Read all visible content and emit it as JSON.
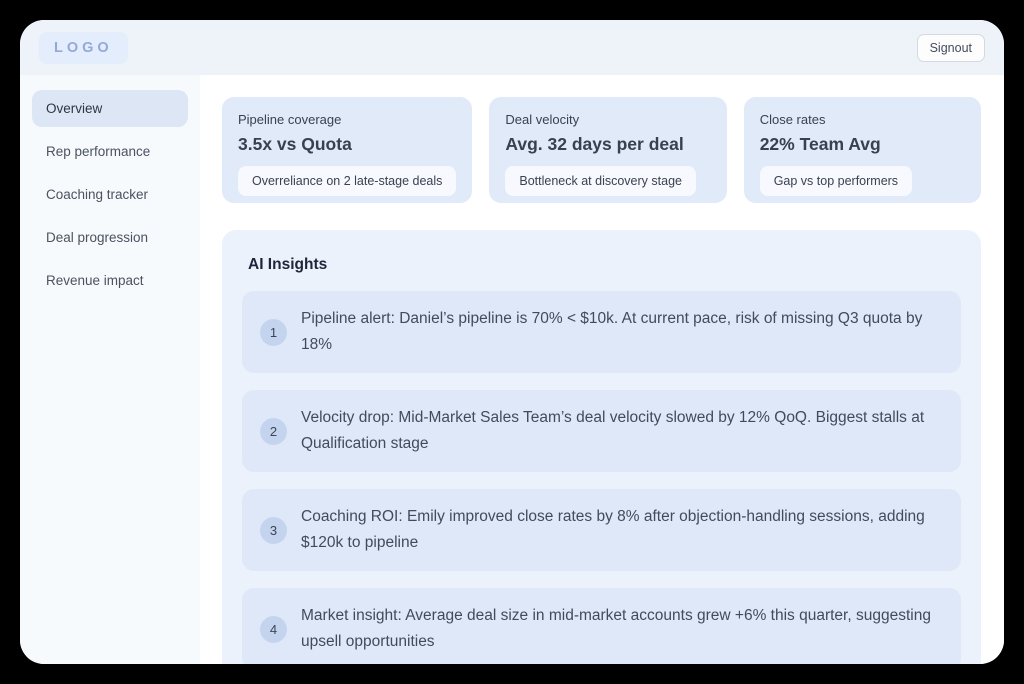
{
  "header": {
    "logo": "LOGO",
    "signout_label": "Signout"
  },
  "sidebar": {
    "items": [
      {
        "label": "Overview",
        "active": true
      },
      {
        "label": "Rep performance",
        "active": false
      },
      {
        "label": "Coaching tracker",
        "active": false
      },
      {
        "label": "Deal progression",
        "active": false
      },
      {
        "label": "Revenue impact",
        "active": false
      }
    ]
  },
  "stats": {
    "cards": [
      {
        "label": "Pipeline coverage",
        "value": "3.5x vs Quota",
        "note": "Overreliance on 2 late-stage deals"
      },
      {
        "label": "Deal velocity",
        "value": "Avg. 32 days per deal",
        "note": "Bottleneck at discovery stage"
      },
      {
        "label": "Close rates",
        "value": "22% Team Avg",
        "note": "Gap vs top performers"
      }
    ]
  },
  "insights": {
    "title": "AI Insights",
    "items": [
      {
        "number": "1",
        "text": "Pipeline alert: Daniel’s pipeline is 70% < $10k. At current pace, risk of missing Q3 quota by 18%"
      },
      {
        "number": "2",
        "text": "Velocity drop: Mid-Market Sales Team’s deal velocity slowed by 12% QoQ. Biggest stalls at Qualification stage"
      },
      {
        "number": "3",
        "text": "Coaching ROI: Emily improved close rates by 8% after objection-handling sessions, adding $120k to pipeline"
      },
      {
        "number": "4",
        "text": "Market insight: Average deal size in mid-market accounts grew +6% this quarter, suggesting upsell opportunities"
      }
    ]
  },
  "colors": {
    "window_background": "#ffffff",
    "header_background": "#eef3fa",
    "sidebar_background": "#f7fafd",
    "active_item_background": "#dce6f5",
    "card_background": "#e0eaf9",
    "panel_background": "#ebf2fb",
    "item_background": "#dee8f8",
    "badge_background": "#c5d4ee",
    "logo_text": "#95a9d8"
  }
}
